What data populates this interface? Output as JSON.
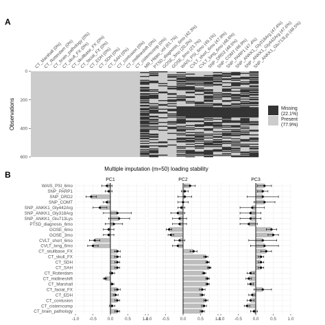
{
  "panel_a_label": "A",
  "panel_b_label": "B",
  "chart_data": [
    {
      "type": "heatmap",
      "ylabel": "Observations",
      "yticks": [
        0,
        200,
        400,
        600
      ],
      "ylim": [
        0,
        600
      ],
      "variables": [
        "CT_Marshall (0%)",
        "CT_Rotterdam (0%)",
        "CT_brain_pathology (0%)",
        "CT_skull_FX (0%)",
        "CT_skullbase_FX (0%)",
        "CT_facial_FX (0%)",
        "CT_EDH (0%)",
        "CT_SDH (0%)",
        "CT_SAH (0%)",
        "CT_contusion (0%)",
        "CT_midlineshift (0%)",
        "CT_cisterncomp (0%)",
        "MR_Hippo_vol (61.7%)",
        "PTSD_diagnosis_6mo (42.3%)",
        "GOSE_3mo (20.3%)",
        "GOSE_6mo (23.7%)",
        "WAIS_PSI_6mo (45.1%)",
        "CVLT_short_6mo (47.9%)",
        "CVLT_long_6mo (48.6%)",
        "SNP_DRD2 (48.5%)",
        "SNP_COMT (48.9%)",
        "SNP_PARP1 (47.4%)",
        "SNP_ANKK1_Gly318Arg (47.4%)",
        "SNP_ANKK1_Gly442Arg (47.6%)",
        "SNP_ANKK1_Glu713Lys (48.5%)"
      ],
      "legend": {
        "missing": "Missing",
        "missing_pct": "(22.1%)",
        "present": "Present",
        "present_pct": "(77.9%)"
      },
      "colors": {
        "missing": "#333333",
        "present": "#cccccc"
      }
    },
    {
      "type": "dotplot_errorbar",
      "title": "Multiple imputation (m=50) loading stability",
      "panels": [
        "PC1",
        "PC2",
        "PC3"
      ],
      "xlim": [
        -1.0,
        1.0
      ],
      "xticks": [
        "-1.0",
        "-0.5",
        "0.0",
        "0.5",
        "1.0"
      ],
      "variables": [
        "WAIS_PSI_6mo",
        "SNP_PARP1",
        "SNP_DRD2",
        "SNP_COMT",
        "SNP_ANKK1_Gly442Arg",
        "SNP_ANKK1_Gly318Arg",
        "SNP_ANKK1_Glu713Lys",
        "PTSD_diagnosis_6mo",
        "GOSE_6mo",
        "GOSE_3mo",
        "CVLT_short_6mo",
        "CVLT_long_6mo",
        "CT_skullbase_FX",
        "CT_skull_FX",
        "CT_SDH",
        "CT_SAH",
        "CT_Rotterdam",
        "CT_midlineshift",
        "CT_Marshall",
        "CT_facial_FX",
        "CT_EDH",
        "CT_contusion",
        "CT_cisterncomp",
        "CT_brain_pathology"
      ],
      "bar_color": "#bdbdbd",
      "series": [
        {
          "name": "PC1",
          "values": [
            -0.1,
            -0.05,
            -0.55,
            -0.1,
            -0.3,
            0.2,
            0.25,
            0.1,
            -0.05,
            -0.05,
            -0.45,
            -0.5,
            0.2,
            0.2,
            0.2,
            0.2,
            0.05,
            -0.15,
            0.05,
            0.2,
            0.15,
            0.2,
            0.05,
            0.2
          ],
          "error": [
            0.15,
            0.1,
            0.15,
            0.1,
            0.2,
            0.4,
            0.3,
            0.25,
            0.15,
            0.15,
            0.15,
            0.15,
            0.08,
            0.08,
            0.07,
            0.07,
            0.07,
            0.05,
            0.05,
            0.08,
            0.07,
            0.07,
            0.08,
            0.07
          ]
        },
        {
          "name": "PC2",
          "values": [
            0.2,
            0.05,
            0.05,
            0.0,
            -0.05,
            -0.15,
            -0.1,
            -0.1,
            -0.4,
            -0.35,
            -0.1,
            -0.15,
            0.3,
            0.65,
            0.7,
            0.75,
            0.6,
            0.7,
            0.7,
            0.55,
            0.55,
            0.65,
            0.6,
            0.55
          ],
          "error": [
            0.15,
            0.1,
            0.2,
            0.15,
            0.1,
            0.2,
            0.2,
            0.2,
            0.08,
            0.08,
            0.15,
            0.15,
            0.1,
            0.06,
            0.05,
            0.05,
            0.05,
            0.05,
            0.05,
            0.08,
            0.06,
            0.06,
            0.07,
            0.06
          ]
        },
        {
          "name": "PC3",
          "values": [
            0.25,
            0.2,
            0.2,
            0.25,
            -0.1,
            -0.15,
            -0.15,
            -0.2,
            0.45,
            0.5,
            0.2,
            0.25,
            0.3,
            0.15,
            0.15,
            0.15,
            -0.15,
            -0.2,
            -0.15,
            0.2,
            -0.1,
            -0.15,
            -0.25,
            -0.05
          ],
          "error": [
            0.2,
            0.15,
            0.45,
            0.3,
            0.35,
            0.3,
            0.3,
            0.25,
            0.15,
            0.15,
            0.4,
            0.4,
            0.15,
            0.08,
            0.08,
            0.08,
            0.1,
            0.08,
            0.08,
            0.25,
            0.1,
            0.1,
            0.08,
            0.1
          ]
        }
      ]
    }
  ]
}
